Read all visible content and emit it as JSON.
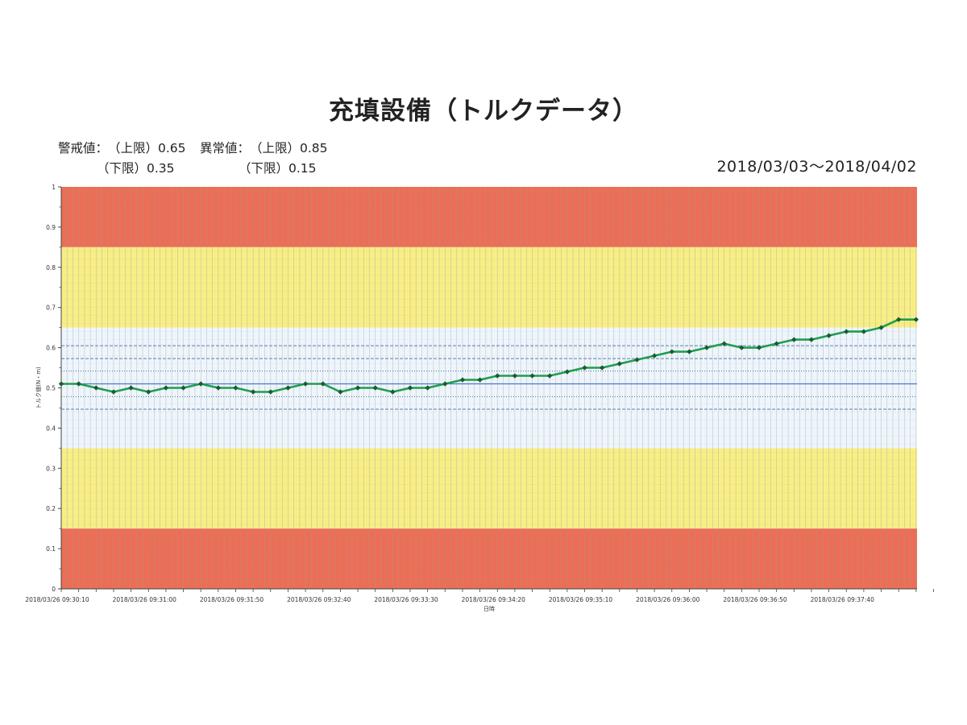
{
  "title": "充填設備（トルクデータ）",
  "thresholds": {
    "warning_label": "警戒値：",
    "warning_upper": "（上限）0.65",
    "warning_lower": "（下限）0.35",
    "abnormal_label": "異常値：",
    "abnormal_upper": "（上限）0.85",
    "abnormal_lower": "（下限）0.15"
  },
  "date_range": "2018/03/03〜2018/04/02",
  "colors": {
    "abnormal_band": "#ec6e55",
    "warning_band": "#f8ee85",
    "normal_band": "#eef5fb",
    "line": "#1f9e4f",
    "marker": "#1e5a32",
    "mean_line": "#4a78c8",
    "sigma_line": "#5a7fae"
  },
  "chart_data": {
    "type": "line",
    "title": "充填設備（トルクデータ）",
    "ylabel": "トルク値(N・m)",
    "xlabel": "日時",
    "ylim": [
      0,
      1
    ],
    "yticks": [
      "0",
      "0.1",
      "0.2",
      "0.3",
      "0.4",
      "0.5",
      "0.6",
      "0.7",
      "0.8",
      "0.9",
      "1"
    ],
    "xtick_labels": [
      "2018/03/26 09:30:10",
      "2018/03/26 09:31:00",
      "2018/03/26 09:31:50",
      "2018/03/26 09:32:40",
      "2018/03/26 09:33:30",
      "2018/03/26 09:34:20",
      "2018/03/26 09:35:10",
      "2018/03/26 09:36:00",
      "2018/03/26 09:36:50",
      "2018/03/26 09:37:40"
    ],
    "x_start": "2018/03/26 09:30:10",
    "x_interval_seconds": 10,
    "grid": true,
    "bands": [
      {
        "from": 0.85,
        "to": 1.0,
        "kind": "abnormal"
      },
      {
        "from": 0.65,
        "to": 0.85,
        "kind": "warning"
      },
      {
        "from": 0.35,
        "to": 0.65,
        "kind": "normal"
      },
      {
        "from": 0.15,
        "to": 0.35,
        "kind": "warning"
      },
      {
        "from": 0.0,
        "to": 0.15,
        "kind": "abnormal"
      }
    ],
    "reference_lines": [
      {
        "value": 0.51,
        "style": "solid"
      },
      {
        "value": 0.605,
        "style": "dashed"
      },
      {
        "value": 0.573,
        "style": "dashed"
      },
      {
        "value": 0.542,
        "style": "dotted"
      },
      {
        "value": 0.478,
        "style": "dotted"
      },
      {
        "value": 0.447,
        "style": "dashed"
      }
    ],
    "series": [
      {
        "values": [
          0.51,
          0.51,
          0.5,
          0.49,
          0.5,
          0.49,
          0.5,
          0.5,
          0.51,
          0.5,
          0.5,
          0.49,
          0.49,
          0.5,
          0.51,
          0.51,
          0.49,
          0.5,
          0.5,
          0.49,
          0.5,
          0.5,
          0.51,
          0.52,
          0.52,
          0.53,
          0.53,
          0.53,
          0.53,
          0.54,
          0.55,
          0.55,
          0.56,
          0.57,
          0.58,
          0.59,
          0.59,
          0.6,
          0.61,
          0.6,
          0.6,
          0.61,
          0.62,
          0.62,
          0.63,
          0.64,
          0.64,
          0.65,
          0.67,
          0.67
        ]
      }
    ]
  }
}
